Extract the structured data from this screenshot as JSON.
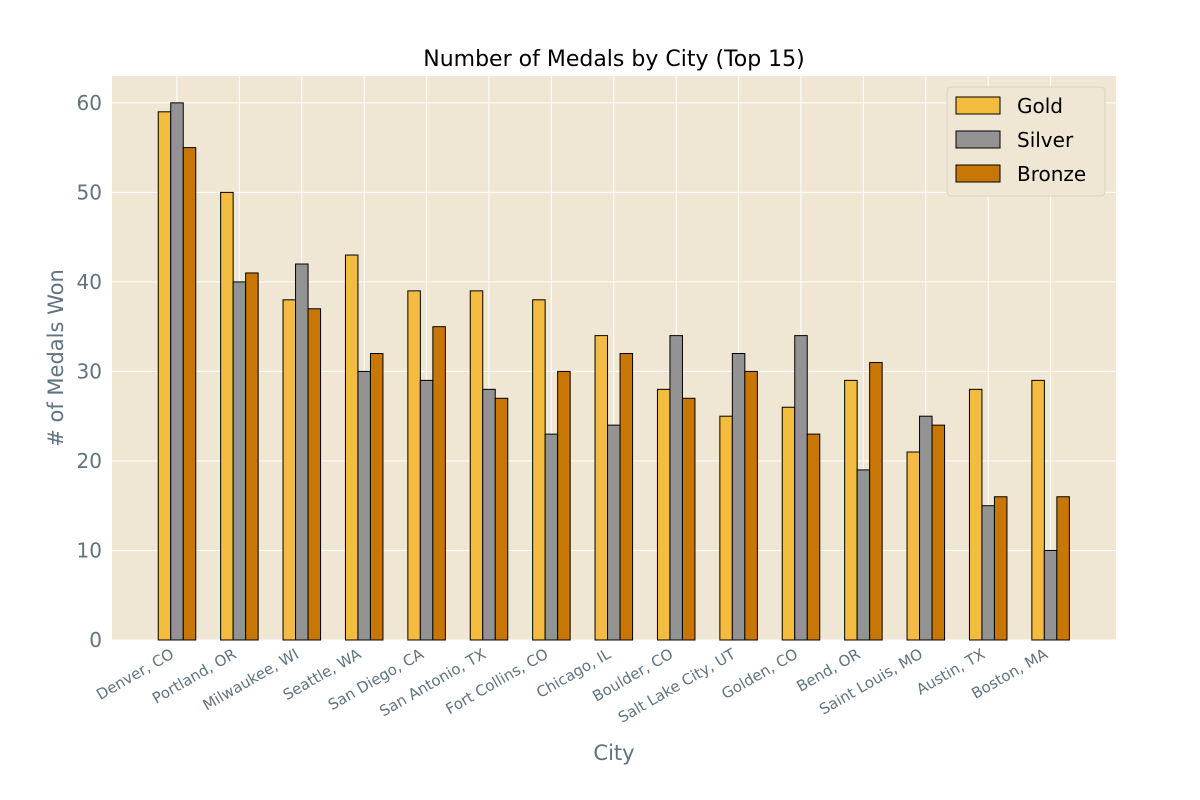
{
  "chart_data": {
    "type": "bar",
    "title": "Number of Medals by City (Top 15)",
    "xlabel": "City",
    "ylabel": "# of Medals Won",
    "ylim": [
      0,
      63
    ],
    "yticks": [
      0,
      10,
      20,
      30,
      40,
      50,
      60
    ],
    "grid": true,
    "legend_position": "top-right",
    "categories": [
      "Denver, CO",
      "Portland, OR",
      "Milwaukee, WI",
      "Seattle, WA",
      "San Diego, CA",
      "San Antonio, TX",
      "Fort Collins, CO",
      "Chicago, IL",
      "Boulder, CO",
      "Salt Lake City, UT",
      "Golden, CO",
      "Bend, OR",
      "Saint Louis, MO",
      "Austin, TX",
      "Boston, MA"
    ],
    "series": [
      {
        "name": "Gold",
        "color": "#f4bc3f",
        "values": [
          59,
          50,
          38,
          43,
          39,
          39,
          38,
          34,
          28,
          25,
          26,
          29,
          21,
          28,
          29
        ]
      },
      {
        "name": "Silver",
        "color": "#939393",
        "values": [
          60,
          40,
          42,
          30,
          29,
          28,
          23,
          24,
          34,
          32,
          34,
          19,
          25,
          15,
          10
        ]
      },
      {
        "name": "Bronze",
        "color": "#c87707",
        "values": [
          55,
          41,
          37,
          32,
          35,
          27,
          30,
          32,
          27,
          30,
          23,
          31,
          24,
          16,
          16
        ]
      }
    ]
  },
  "colors": {
    "plot_background": "#efe7d4",
    "grid": "#ffffff",
    "bar_edge": "#000000",
    "tick_text": "#5f7380"
  }
}
